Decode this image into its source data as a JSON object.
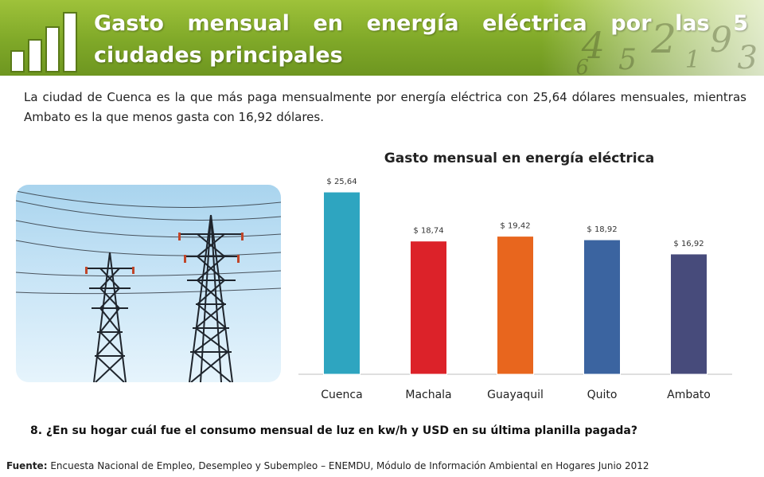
{
  "header": {
    "title": "Gasto mensual en energía eléctrica por las 5 ciudades principales",
    "accent_color": "#7fa828"
  },
  "intro_text": "La ciudad de Cuenca es la que más paga mensualmente por energía eléctrica con 25,64 dólares mensuales, mientras Ambato es la que menos  gasta con 16,92 dólares.",
  "image": {
    "icon": "power-lines-photo"
  },
  "chart_data": {
    "type": "bar",
    "title": "Gasto mensual en energía eléctrica",
    "categories": [
      "Cuenca",
      "Machala",
      "Guayaquil",
      "Quito",
      "Ambato"
    ],
    "values": [
      25.64,
      18.74,
      19.42,
      18.92,
      16.92
    ],
    "data_labels": [
      "$ 25,64",
      "$ 18,74",
      "$ 19,42",
      "$ 18,92",
      "$ 16,92"
    ],
    "colors": [
      "#2ea5c0",
      "#dc2229",
      "#e8661e",
      "#3b64a0",
      "#474b7b"
    ],
    "ylim": [
      0,
      28
    ],
    "grid": false,
    "legend": "none"
  },
  "question": "8. ¿En su hogar cuál fue el consumo mensual de luz en kw/h y USD en su última planilla pagada?",
  "source": {
    "label": "Fuente:",
    "text": " Encuesta Nacional de Empleo, Desempleo y Subempleo – ENEMDU, Módulo de Información Ambiental en Hogares Junio 2012"
  }
}
